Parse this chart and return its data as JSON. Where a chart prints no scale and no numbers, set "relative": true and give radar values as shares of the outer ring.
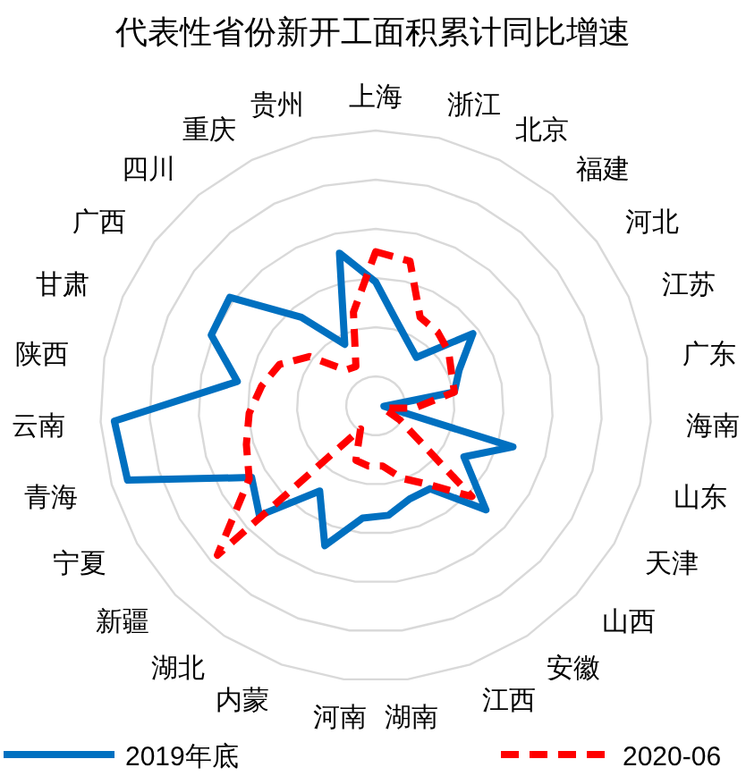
{
  "chart_data": {
    "type": "radar",
    "title": "代表性省份新开工面积累计同比增速",
    "relative": true,
    "legend": "bottom",
    "grid": true,
    "categories": [
      "上海",
      "浙江",
      "北京",
      "福建",
      "河北",
      "江苏",
      "广东",
      "海南",
      "山东",
      "天津",
      "山西",
      "安徽",
      "江西",
      "湖南",
      "河南",
      "内蒙",
      "湖北",
      "新疆",
      "宁夏",
      "青海",
      "云南",
      "陕西",
      "甘肃",
      "广西",
      "四川",
      "重庆",
      "贵州"
    ],
    "series": [
      {
        "name": "2019年底",
        "color": "#0070c0",
        "line_style": "solid",
        "values": [
          0.45,
          0.32,
          0.26,
          0.23,
          0.44,
          0.33,
          0.29,
          0.03,
          0.52,
          0.37,
          0.55,
          0.36,
          0.36,
          0.4,
          0.41,
          0.54,
          0.37,
          0.58,
          0.52,
          0.94,
          0.95,
          0.51,
          0.65,
          0.66,
          0.42,
          0.25,
          0.57
        ]
      },
      {
        "name": "2020-06",
        "color": "#ff0000",
        "line_style": "dashed",
        "values": [
          0.56,
          0.54,
          0.36,
          0.35,
          0.33,
          0.3,
          0.29,
          0.14,
          0.03,
          0.1,
          0.48,
          0.34,
          0.28,
          0.22,
          0.22,
          0.21,
          0.1,
          0.79,
          0.53,
          0.49,
          0.46,
          0.42,
          0.38,
          0.3,
          0.17,
          0.16,
          0.35
        ]
      }
    ]
  }
}
